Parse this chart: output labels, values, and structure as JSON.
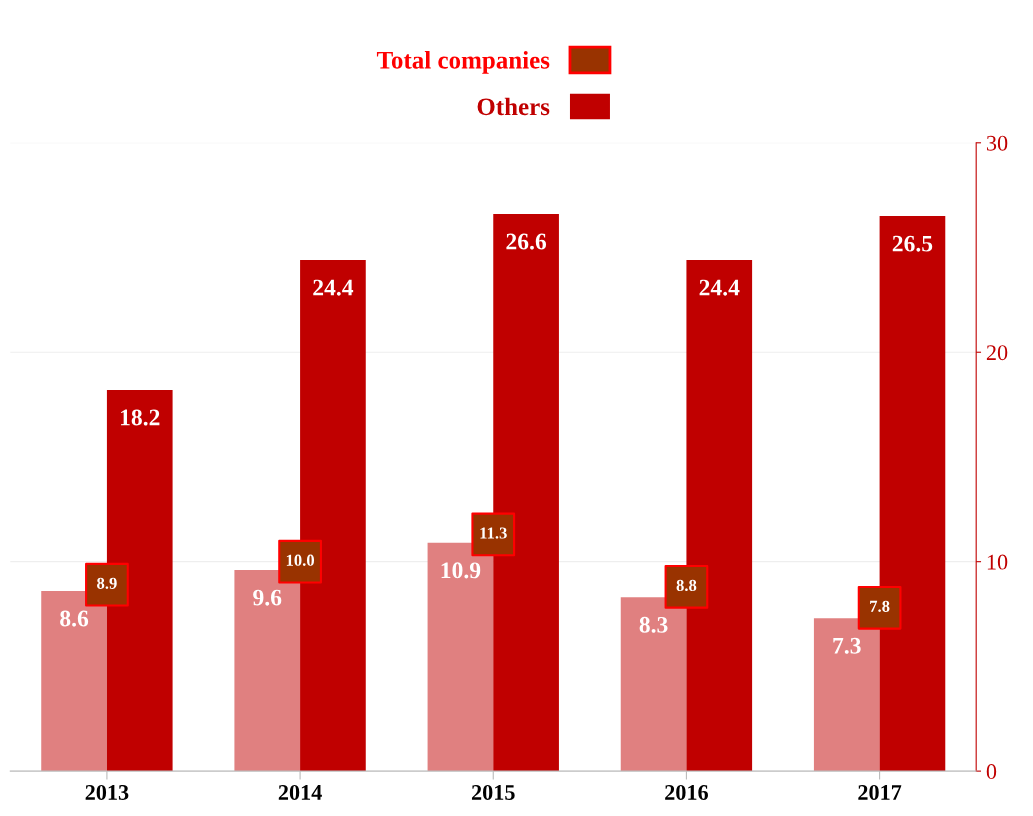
{
  "chart_data": {
    "type": "bar",
    "categories": [
      "2013",
      "2014",
      "2015",
      "2016",
      "2017"
    ],
    "series": [
      {
        "name": "Total companies",
        "type": "scatter",
        "marker": "square",
        "color": "#993300",
        "values": [
          8.9,
          10.0,
          11.3,
          8.8,
          7.8
        ],
        "value_labels": [
          "8.9",
          "10.0",
          "11.3",
          "8.8",
          "7.8"
        ]
      },
      {
        "color": "#e08080",
        "values": [
          8.6,
          9.6,
          10.9,
          8.3,
          7.3
        ]
      },
      {
        "name": "Others",
        "color": "#c00000",
        "values": [
          18.2,
          24.4,
          26.6,
          24.4,
          26.5
        ]
      }
    ],
    "ylim": [
      0,
      30
    ],
    "yticks": [
      0,
      10,
      20,
      30
    ],
    "grid": "y",
    "legend": "top",
    "data_labels": true
  }
}
